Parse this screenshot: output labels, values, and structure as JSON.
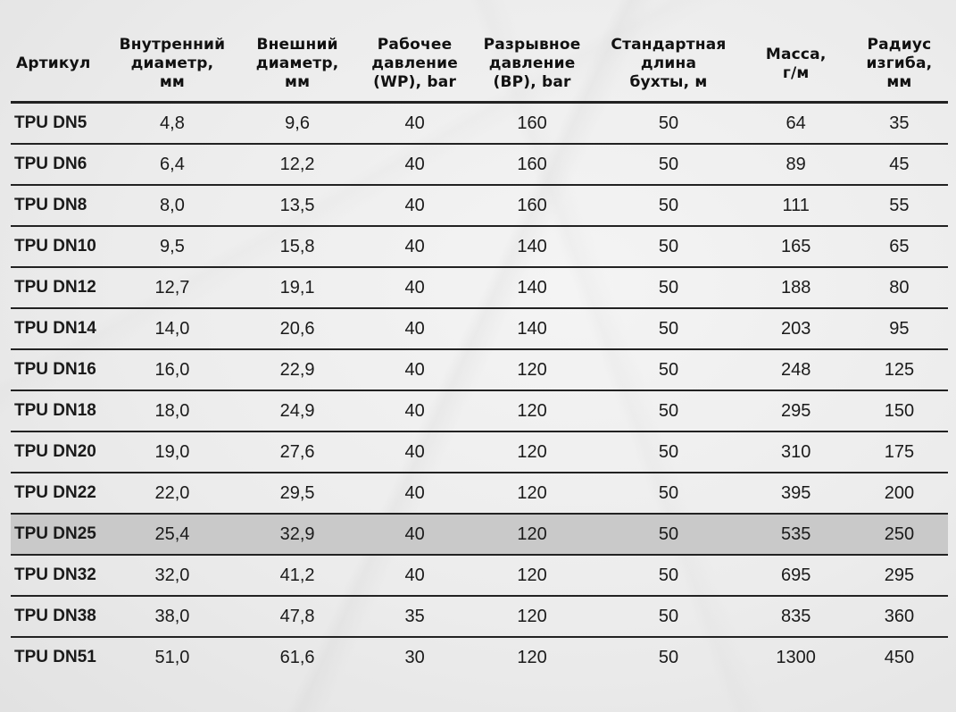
{
  "table": {
    "headers": [
      [
        "Артикул"
      ],
      [
        "Внутренний",
        "диаметр,",
        "мм"
      ],
      [
        "Внешний",
        "диаметр,",
        "мм"
      ],
      [
        "Рабочее",
        "давление",
        "(WP), bar"
      ],
      [
        "Разрывное",
        "давление",
        "(BP), bar"
      ],
      [
        "Стандартная",
        "длина",
        "бухты, м"
      ],
      [
        "Масса,",
        "г/м"
      ],
      [
        "Радиус",
        "изгиба,",
        "мм"
      ]
    ],
    "rows": [
      [
        "TPU DN5",
        "4,8",
        "9,6",
        "40",
        "160",
        "50",
        "64",
        "35"
      ],
      [
        "TPU DN6",
        "6,4",
        "12,2",
        "40",
        "160",
        "50",
        "89",
        "45"
      ],
      [
        "TPU DN8",
        "8,0",
        "13,5",
        "40",
        "160",
        "50",
        "111",
        "55"
      ],
      [
        "TPU DN10",
        "9,5",
        "15,8",
        "40",
        "140",
        "50",
        "165",
        "65"
      ],
      [
        "TPU DN12",
        "12,7",
        "19,1",
        "40",
        "140",
        "50",
        "188",
        "80"
      ],
      [
        "TPU DN14",
        "14,0",
        "20,6",
        "40",
        "140",
        "50",
        "203",
        "95"
      ],
      [
        "TPU DN16",
        "16,0",
        "22,9",
        "40",
        "120",
        "50",
        "248",
        "125"
      ],
      [
        "TPU DN18",
        "18,0",
        "24,9",
        "40",
        "120",
        "50",
        "295",
        "150"
      ],
      [
        "TPU DN20",
        "19,0",
        "27,6",
        "40",
        "120",
        "50",
        "310",
        "175"
      ],
      [
        "TPU DN22",
        "22,0",
        "29,5",
        "40",
        "120",
        "50",
        "395",
        "200"
      ],
      [
        "TPU DN25",
        "25,4",
        "32,9",
        "40",
        "120",
        "50",
        "535",
        "250"
      ],
      [
        "TPU DN32",
        "32,0",
        "41,2",
        "40",
        "120",
        "50",
        "695",
        "295"
      ],
      [
        "TPU DN38",
        "38,0",
        "47,8",
        "35",
        "120",
        "50",
        "835",
        "360"
      ],
      [
        "TPU DN51",
        "51,0",
        "61,6",
        "30",
        "120",
        "50",
        "1300",
        "450"
      ]
    ],
    "highlighted_row_index": 10,
    "highlight_color": "#c9c9c9"
  }
}
